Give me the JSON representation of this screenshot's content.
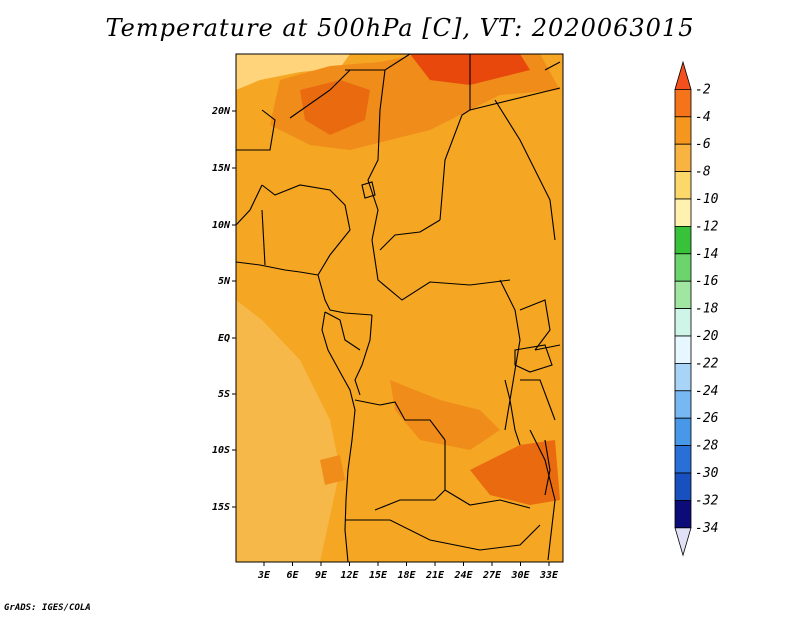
{
  "title": "Temperature at 500hPa [C], VT: 2020063015",
  "credit": "GrADS: IGES/COLA",
  "map": {
    "lon_labels": [
      "3E",
      "6E",
      "9E",
      "12E",
      "15E",
      "18E",
      "21E",
      "24E",
      "27E",
      "30E",
      "33E"
    ],
    "lat_labels": [
      "20N",
      "15N",
      "10N",
      "5N",
      "EQ",
      "5S",
      "10S",
      "15S"
    ],
    "field_colors": {
      "light_band": "#ffd47a",
      "base": "#f5a623",
      "mid": "#f08c1a",
      "warm": "#ea6a10",
      "hot": "#e8480c"
    }
  },
  "colorbar": {
    "labels": [
      "-2",
      "-4",
      "-6",
      "-8",
      "-10",
      "-12",
      "-14",
      "-16",
      "-18",
      "-20",
      "-22",
      "-24",
      "-26",
      "-28",
      "-30",
      "-32",
      "-34"
    ],
    "colors": [
      "#f4501e",
      "#f5741a",
      "#f5961f",
      "#f8b340",
      "#fcd86a",
      "#fff2b0",
      "#38c23a",
      "#6cd46c",
      "#a0e6a0",
      "#cff4e8",
      "#e6f7ff",
      "#a8d4f8",
      "#78b8f2",
      "#4898ea",
      "#2870d8",
      "#1850c0",
      "#0c0c78",
      "#e0e0f6"
    ]
  }
}
